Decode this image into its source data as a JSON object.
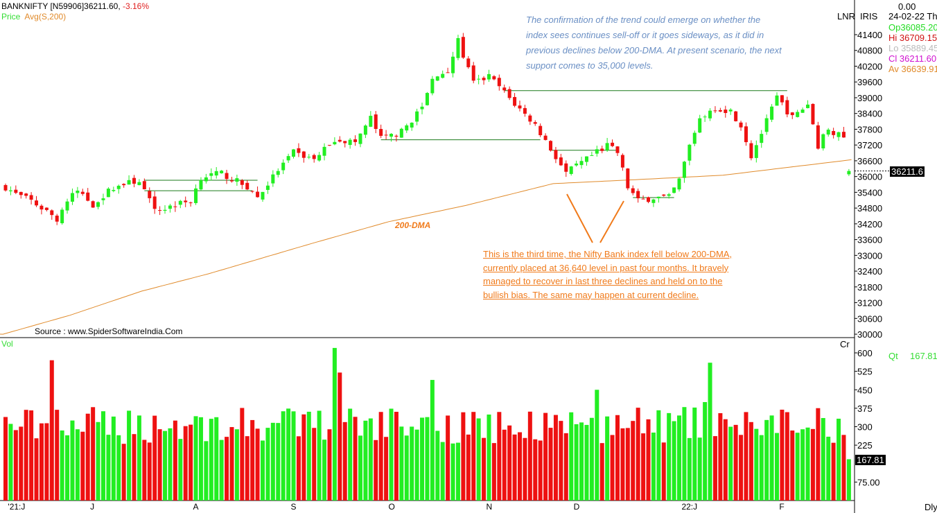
{
  "header": {
    "symbol": "BANKNIFTY [N59906]36211.60,",
    "change": "-3.16%",
    "legend_price": "Price",
    "legend_avg": "Avg(S,200)",
    "vol_label": "Vol"
  },
  "right_panel": {
    "top_value": "0.00",
    "lnr": "LNR",
    "iris": "IRIS",
    "date": "24-02-22 Thu",
    "open": "Op36085.20",
    "high": "Hi  36709.15",
    "low": "Lo  35889.45",
    "close": "Cl  36211.60",
    "avg": "Av 36639.91",
    "cr": "Cr",
    "qt_label": "Qt",
    "qt_value": "167.81",
    "price_tag": "36211.6",
    "vol_tag": "167.81",
    "period": "Dly"
  },
  "annotations": {
    "top_note": "The confirmation of the trend could emerge on whether the index sees continues sell-off or it goes sideways, as it did in previous declines below 200-DMA. At present scenario, the next support comes to 35,000 levels.",
    "bottom_note": "This is the third time, the Nifty Bank index fell below 200-DMA, currently placed at 36,640 level in past four months. It bravely managed to recover in last three declines and held on to the bullish bias. The same may happen at current decline.",
    "dma_label": "200-DMA",
    "source": "Source : www.SpiderSoftwareIndia.Com"
  },
  "colors": {
    "up": "#22ee22",
    "down": "#ee1111",
    "dma": "#e08a2a",
    "level": "#1a7a1a",
    "arrow": "#f07a1a"
  },
  "chart_data": {
    "type": "candlestick",
    "title": "BANKNIFTY daily",
    "n_candles": 165,
    "last_close": 36211.6,
    "close_waypoints": [
      [
        0,
        35600
      ],
      [
        2,
        35330
      ],
      [
        5,
        35070
      ],
      [
        7,
        34800
      ],
      [
        10,
        34400
      ],
      [
        12,
        35070
      ],
      [
        14,
        35460
      ],
      [
        17,
        34930
      ],
      [
        21,
        35600
      ],
      [
        26,
        35860
      ],
      [
        29,
        34670
      ],
      [
        33,
        34930
      ],
      [
        36,
        35070
      ],
      [
        38,
        35990
      ],
      [
        42,
        36120
      ],
      [
        47,
        35600
      ],
      [
        49,
        35200
      ],
      [
        53,
        36250
      ],
      [
        56,
        36910
      ],
      [
        60,
        36650
      ],
      [
        64,
        37440
      ],
      [
        68,
        37300
      ],
      [
        71,
        38230
      ],
      [
        73,
        37440
      ],
      [
        77,
        37700
      ],
      [
        81,
        38630
      ],
      [
        83,
        39680
      ],
      [
        86,
        40080
      ],
      [
        88,
        41140
      ],
      [
        91,
        39550
      ],
      [
        94,
        39810
      ],
      [
        96,
        39420
      ],
      [
        99,
        38760
      ],
      [
        103,
        37970
      ],
      [
        106,
        37050
      ],
      [
        109,
        36120
      ],
      [
        111,
        36390
      ],
      [
        114,
        36780
      ],
      [
        117,
        37180
      ],
      [
        119,
        36910
      ],
      [
        121,
        35600
      ],
      [
        123,
        35070
      ],
      [
        126,
        35200
      ],
      [
        129,
        35200
      ],
      [
        131,
        35860
      ],
      [
        133,
        37180
      ],
      [
        135,
        38230
      ],
      [
        138,
        38630
      ],
      [
        141,
        38500
      ],
      [
        143,
        37970
      ],
      [
        145,
        36780
      ],
      [
        148,
        38100
      ],
      [
        150,
        39020
      ],
      [
        153,
        38230
      ],
      [
        156,
        38760
      ],
      [
        158,
        37180
      ],
      [
        160,
        37840
      ],
      [
        163,
        37440
      ],
      [
        164,
        36211.6
      ]
    ],
    "dma_waypoints": [
      [
        0,
        30000
      ],
      [
        13,
        30720
      ],
      [
        27,
        31640
      ],
      [
        40,
        32300
      ],
      [
        60,
        33450
      ],
      [
        75,
        34280
      ],
      [
        90,
        34900
      ],
      [
        107,
        35730
      ],
      [
        125,
        35900
      ],
      [
        140,
        36050
      ],
      [
        165,
        36640
      ]
    ],
    "levels": [
      [
        97,
        152,
        39270
      ],
      [
        73,
        104,
        37400
      ],
      [
        27,
        49,
        35860
      ],
      [
        27,
        48,
        35460
      ],
      [
        106,
        119,
        37000
      ],
      [
        122,
        130,
        35200
      ]
    ],
    "volume_spikes": [
      [
        9,
        570
      ],
      [
        64,
        620
      ],
      [
        65,
        520
      ],
      [
        83,
        490
      ],
      [
        115,
        450
      ],
      [
        137,
        560
      ],
      [
        136,
        400
      ]
    ],
    "price_axis": {
      "ticks": [
        41400,
        40800,
        40200,
        39600,
        39000,
        38400,
        37800,
        37200,
        36600,
        36000,
        35400,
        34800,
        34200,
        33600,
        33000,
        32400,
        31800,
        31200,
        30600,
        30000
      ],
      "range": [
        30000,
        41400
      ]
    },
    "volume_axis": {
      "ticks": [
        "600",
        "525",
        "450",
        "375",
        "300",
        "225",
        "75.00"
      ],
      "range": [
        0,
        600
      ],
      "unit": "Cr"
    },
    "x_ticks": [
      [
        "'21:J",
        1
      ],
      [
        "J",
        17
      ],
      [
        "A",
        37
      ],
      [
        "S",
        56
      ],
      [
        "O",
        75
      ],
      [
        "N",
        94
      ],
      [
        "D",
        111
      ],
      [
        "22:J",
        132
      ],
      [
        "F",
        151
      ]
    ]
  }
}
